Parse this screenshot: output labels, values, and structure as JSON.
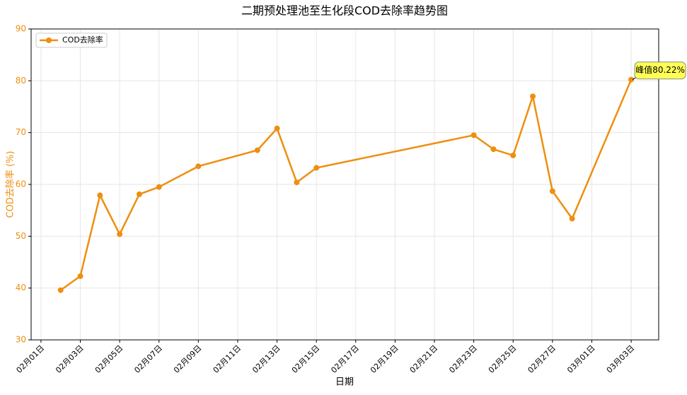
{
  "chart_data": {
    "type": "line",
    "title": "二期预处理池至生化段COD去除率趋势图",
    "xlabel": "日期",
    "ylabel": "COD去除率 (%)",
    "x": [
      "02月02日",
      "02月03日",
      "02月04日",
      "02月05日",
      "02月06日",
      "02月07日",
      "02月09日",
      "02月12日",
      "02月13日",
      "02月14日",
      "02月15日",
      "02月23日",
      "02月24日",
      "02月25日",
      "02月26日",
      "02月27日",
      "02月28日",
      "03月03日"
    ],
    "series": [
      {
        "name": "COD去除率",
        "color": "#ee8f0f",
        "values": [
          39.6,
          42.3,
          57.9,
          50.4,
          58.1,
          59.5,
          63.5,
          66.6,
          70.8,
          60.4,
          63.2,
          69.5,
          66.8,
          65.6,
          77.0,
          58.7,
          53.4,
          80.22
        ]
      }
    ],
    "xticks": [
      "02月01日",
      "02月03日",
      "02月05日",
      "02月07日",
      "02月09日",
      "02月11日",
      "02月13日",
      "02月15日",
      "02月17日",
      "02月19日",
      "02月21日",
      "02月23日",
      "02月25日",
      "02月27日",
      "03月01日",
      "03月03日"
    ],
    "ylim": [
      30,
      90
    ],
    "yticks": [
      30,
      40,
      50,
      60,
      70,
      80,
      90
    ],
    "grid": true,
    "legend": "upper left",
    "annotation": {
      "text": "峰值80.22%",
      "x": "03月03日",
      "y": 80.22
    }
  }
}
